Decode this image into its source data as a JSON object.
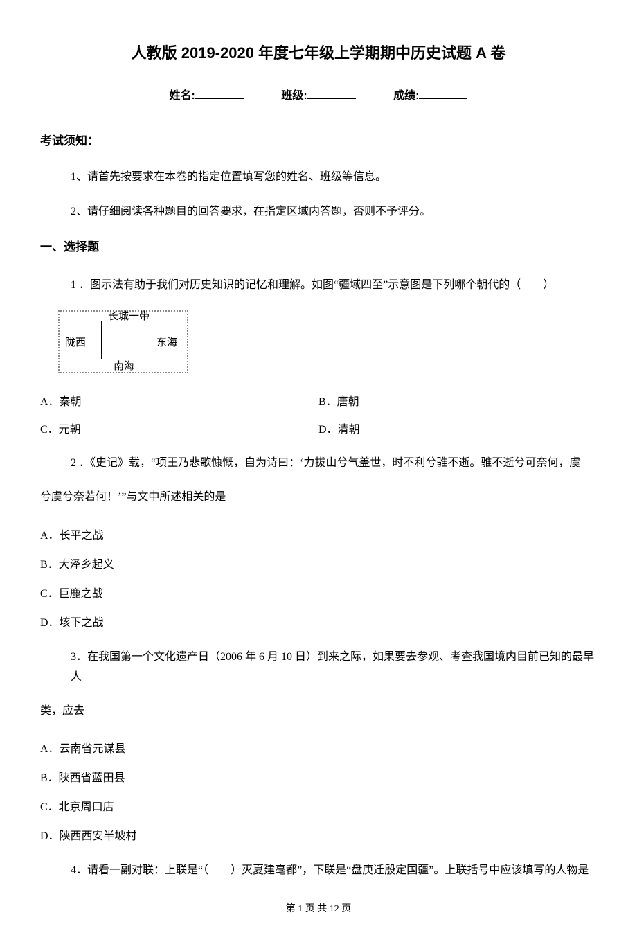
{
  "title": "人教版 2019-2020 年度七年级上学期期中历史试题 A 卷",
  "meta": {
    "name_label": "姓名:",
    "class_label": "班级:",
    "score_label": "成绩:"
  },
  "notice": {
    "heading": "考试须知：",
    "items": [
      "1、请首先按要求在本卷的指定位置填写您的姓名、班级等信息。",
      "2、请仔细阅读各种题目的回答要求，在指定区域内答题，否则不予评分。"
    ]
  },
  "section1": {
    "heading": "一、选择题",
    "q1": {
      "stem": "1 ．图示法有助于我们对历史知识的记忆和理解。如图“疆域四至”示意图是下列哪个朝代的（　　）",
      "diagram": {
        "top": "长城一带",
        "left": "陇西",
        "right": "东海",
        "bottom": "南海"
      },
      "opts": {
        "A": "A．秦朝",
        "B": "B．唐朝",
        "C": "C．元朝",
        "D": "D．清朝"
      }
    },
    "q2": {
      "stem": "2 ．《史记》载，“项王乃悲歌慷慨，自为诗曰：‘力拔山兮气盖世，时不利兮骓不逝。骓不逝兮可奈何，虞",
      "stem_cont": "兮虞兮奈若何！’”与文中所述相关的是",
      "opts": {
        "A": "A．长平之战",
        "B": "B．大泽乡起义",
        "C": "C．巨鹿之战",
        "D": "D．垓下之战"
      }
    },
    "q3": {
      "stem": "3．在我国第一个文化遗产日（2006 年 6 月 10 日）到来之际，如果要去参观、考查我国境内目前已知的最早人",
      "stem_cont": "类，应去",
      "opts": {
        "A": "A．云南省元谋县",
        "B": "B．陕西省蓝田县",
        "C": "C．北京周口店",
        "D": "D．陕西西安半坡村"
      }
    },
    "q4": {
      "stem": "4．请看一副对联：上联是“（　　）灭夏建亳都”，下联是“盘庚迁殷定国疆”。上联括号中应该填写的人物是"
    }
  },
  "footer": "第 1 页 共 12 页"
}
